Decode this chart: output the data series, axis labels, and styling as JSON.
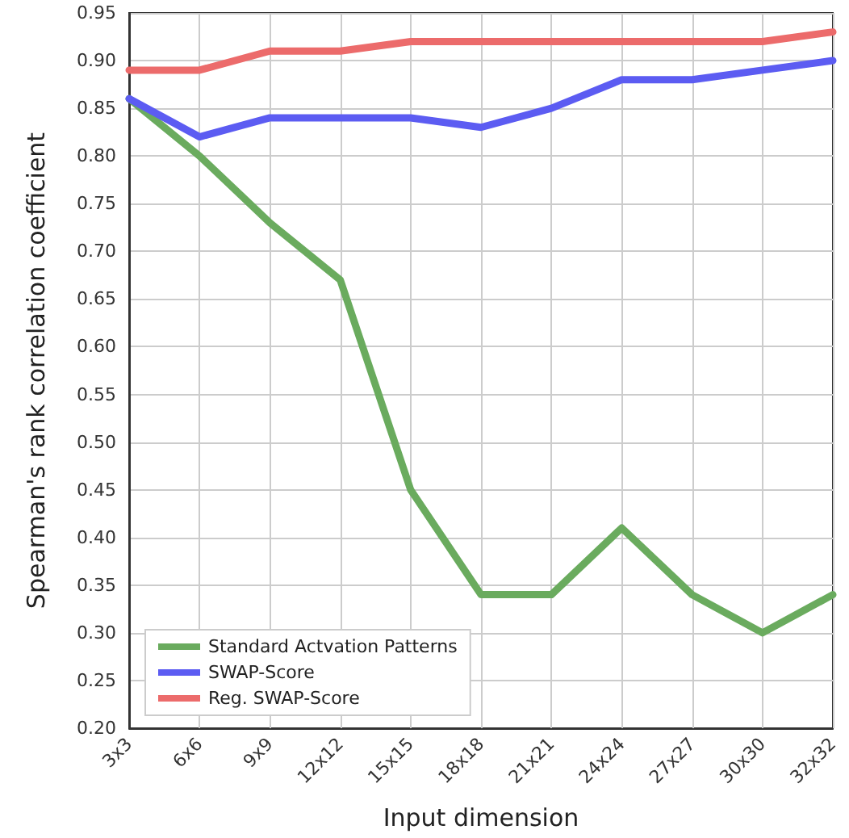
{
  "chart_data": {
    "type": "line",
    "xlabel": "Input dimension",
    "ylabel": "Spearman's rank correlation coefficient",
    "categories": [
      "3x3",
      "6x6",
      "9x9",
      "12x12",
      "15x15",
      "18x18",
      "21x21",
      "24x24",
      "27x27",
      "30x30",
      "32x32"
    ],
    "series": [
      {
        "name": "Standard Actvation Patterns",
        "color": "#6aab5e",
        "values": [
          0.86,
          0.8,
          0.73,
          0.67,
          0.45,
          0.34,
          0.34,
          0.41,
          0.34,
          0.3,
          0.34
        ]
      },
      {
        "name": "SWAP-Score",
        "color": "#5c5cf2",
        "values": [
          0.86,
          0.82,
          0.84,
          0.84,
          0.84,
          0.83,
          0.85,
          0.88,
          0.88,
          0.89,
          0.9
        ]
      },
      {
        "name": "Reg. SWAP-Score",
        "color": "#ec6b6b",
        "values": [
          0.89,
          0.89,
          0.91,
          0.91,
          0.92,
          0.92,
          0.92,
          0.92,
          0.92,
          0.92,
          0.93
        ]
      }
    ],
    "ylim": [
      0.2,
      0.95
    ],
    "yticks": [
      {
        "value": 0.2,
        "label": "0.20"
      },
      {
        "value": 0.25,
        "label": "0.25"
      },
      {
        "value": 0.3,
        "label": "0.30"
      },
      {
        "value": 0.35,
        "label": "0.35"
      },
      {
        "value": 0.4,
        "label": "0.40"
      },
      {
        "value": 0.45,
        "label": "0.45"
      },
      {
        "value": 0.5,
        "label": "0.50"
      },
      {
        "value": 0.55,
        "label": "0.55"
      },
      {
        "value": 0.6,
        "label": "0.60"
      },
      {
        "value": 0.65,
        "label": "0.65"
      },
      {
        "value": 0.7,
        "label": "0.70"
      },
      {
        "value": 0.75,
        "label": "0.75"
      },
      {
        "value": 0.8,
        "label": "0.80"
      },
      {
        "value": 0.85,
        "label": "0.85"
      },
      {
        "value": 0.9,
        "label": "0.90"
      },
      {
        "value": 0.95,
        "label": "0.95"
      }
    ],
    "grid": true,
    "legend": "bottom left",
    "marker": "none",
    "line_style": "solid"
  }
}
